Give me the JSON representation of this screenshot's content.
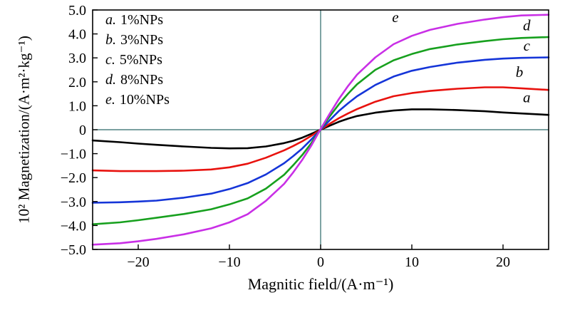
{
  "chart_data": {
    "type": "line",
    "title": "",
    "xlabel": "Magnitic field/(A·m⁻¹)",
    "ylabel": "10² Magnetization/(A·m²·kg⁻¹)",
    "xlim": [
      -25,
      25
    ],
    "ylim": [
      -5,
      5
    ],
    "grid": false,
    "axis_color": "#000000",
    "zero_line_color": "#2a6868",
    "xticks": [
      {
        "v": -20,
        "label": "−20"
      },
      {
        "v": -10,
        "label": "−10"
      },
      {
        "v": 0,
        "label": "0"
      },
      {
        "v": 10,
        "label": "10"
      },
      {
        "v": 20,
        "label": "20"
      }
    ],
    "yticks": [
      {
        "v": 5,
        "label": "5.0"
      },
      {
        "v": 4,
        "label": "4.0"
      },
      {
        "v": 3,
        "label": "3.0"
      },
      {
        "v": 2,
        "label": "2.0"
      },
      {
        "v": 1,
        "label": "1.0"
      },
      {
        "v": 0,
        "label": "0"
      },
      {
        "v": -1,
        "label": "−1.0"
      },
      {
        "v": -2,
        "label": "−2.0"
      },
      {
        "v": -3,
        "label": "−3.0"
      },
      {
        "v": -4,
        "label": "−4.0"
      },
      {
        "v": -5,
        "label": "−5.0"
      }
    ],
    "x": [
      -25,
      -22,
      -20,
      -18,
      -15,
      -12,
      -10,
      -8,
      -6,
      -4,
      -3,
      -2,
      -1,
      0,
      1,
      2,
      3,
      4,
      6,
      8,
      10,
      12,
      15,
      18,
      20,
      22,
      25
    ],
    "series": [
      {
        "name": "a",
        "label": "1%NPs",
        "color": "#000000",
        "values": [
          -0.45,
          -0.52,
          -0.58,
          -0.63,
          -0.7,
          -0.76,
          -0.78,
          -0.77,
          -0.7,
          -0.56,
          -0.46,
          -0.33,
          -0.17,
          0,
          0.17,
          0.33,
          0.46,
          0.57,
          0.71,
          0.8,
          0.85,
          0.85,
          0.82,
          0.77,
          0.72,
          0.68,
          0.62
        ]
      },
      {
        "name": "b",
        "label": "3%NPs",
        "color": "#e8120e",
        "values": [
          -1.7,
          -1.73,
          -1.73,
          -1.73,
          -1.71,
          -1.66,
          -1.57,
          -1.42,
          -1.17,
          -0.86,
          -0.68,
          -0.48,
          -0.25,
          0,
          0.25,
          0.48,
          0.68,
          0.86,
          1.17,
          1.4,
          1.53,
          1.62,
          1.71,
          1.77,
          1.77,
          1.73,
          1.66
        ]
      },
      {
        "name": "c",
        "label": "5%NPs",
        "color": "#1535d8",
        "values": [
          -3.05,
          -3.03,
          -3.0,
          -2.96,
          -2.84,
          -2.67,
          -2.48,
          -2.23,
          -1.87,
          -1.4,
          -1.1,
          -0.78,
          -0.4,
          0,
          0.4,
          0.78,
          1.1,
          1.4,
          1.87,
          2.22,
          2.46,
          2.62,
          2.8,
          2.92,
          2.97,
          3.0,
          3.02
        ]
      },
      {
        "name": "d",
        "label": "8%NPs",
        "color": "#17a01e",
        "values": [
          -3.95,
          -3.87,
          -3.78,
          -3.68,
          -3.52,
          -3.32,
          -3.12,
          -2.87,
          -2.46,
          -1.88,
          -1.48,
          -1.05,
          -0.55,
          0.02,
          0.56,
          1.06,
          1.5,
          1.9,
          2.5,
          2.9,
          3.16,
          3.37,
          3.56,
          3.7,
          3.78,
          3.83,
          3.87
        ]
      },
      {
        "name": "e",
        "label": "10%NPs",
        "color": "#c92fe6",
        "values": [
          -4.8,
          -4.74,
          -4.66,
          -4.56,
          -4.37,
          -4.12,
          -3.87,
          -3.53,
          -2.97,
          -2.26,
          -1.78,
          -1.25,
          -0.65,
          0.03,
          0.67,
          1.28,
          1.82,
          2.3,
          3.02,
          3.57,
          3.92,
          4.17,
          4.42,
          4.6,
          4.7,
          4.77,
          4.8
        ]
      }
    ],
    "curve_labels": [
      {
        "text": "e",
        "x": 8.2,
        "y": 4.5
      },
      {
        "text": "d",
        "x": 22.6,
        "y": 4.15
      },
      {
        "text": "c",
        "x": 22.6,
        "y": 3.3
      },
      {
        "text": "b",
        "x": 21.8,
        "y": 2.2
      },
      {
        "text": "a",
        "x": 22.6,
        "y": 1.15
      }
    ],
    "legend": {
      "position": "top-left",
      "items": [
        {
          "key": "a.",
          "label": "1%NPs"
        },
        {
          "key": "b.",
          "label": "3%NPs"
        },
        {
          "key": "c.",
          "label": "5%NPs"
        },
        {
          "key": "d.",
          "label": "8%NPs"
        },
        {
          "key": "e.",
          "label": "10%NPs"
        }
      ]
    }
  }
}
